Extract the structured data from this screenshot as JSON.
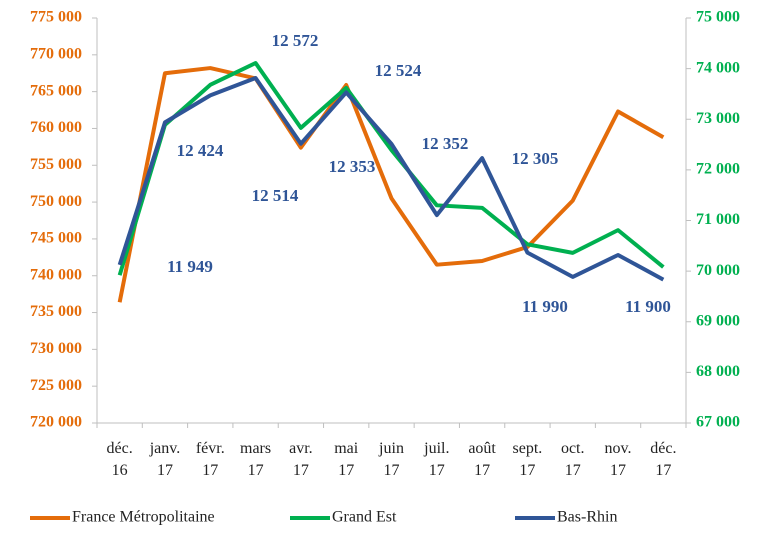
{
  "chart_data": {
    "type": "line",
    "categories": [
      "déc. 16",
      "janv. 17",
      "févr. 17",
      "mars 17",
      "avr. 17",
      "mai 17",
      "juin 17",
      "juil. 17",
      "août 17",
      "sept. 17",
      "oct. 17",
      "nov. 17",
      "déc. 17"
    ],
    "series": [
      {
        "name": "France Métropolitaine",
        "color": "#e46c0a",
        "axis": "y",
        "values": [
          736400,
          767500,
          768200,
          766800,
          757400,
          765900,
          750500,
          741500,
          742000,
          743900,
          750200,
          762300,
          758800
        ]
      },
      {
        "name": "Grand Est",
        "color": "#00b050",
        "axis": "y2",
        "values": [
          69920,
          72890,
          73680,
          74110,
          72830,
          73620,
          72390,
          71300,
          71250,
          70530,
          70360,
          70810,
          70080
        ]
      },
      {
        "name": "Bas-Rhin",
        "color": "#2f5597",
        "axis": "y3",
        "values": [
          11949,
          12424,
          12514,
          12572,
          12353,
          12524,
          12352,
          12115,
          12305,
          11990,
          11909,
          11982,
          11900
        ],
        "value_labels": [
          "11 949",
          "12 424",
          "12 514",
          "12 572",
          "12 353",
          "12 524",
          "12 352",
          null,
          "12 305",
          "11 990",
          null,
          null,
          "11 900"
        ]
      }
    ],
    "ylim": [
      720000,
      775000
    ],
    "yticks": [
      {
        "value": 720000,
        "label": "720 000"
      },
      {
        "value": 725000,
        "label": "725 000"
      },
      {
        "value": 730000,
        "label": "730 000"
      },
      {
        "value": 735000,
        "label": "735 000"
      },
      {
        "value": 740000,
        "label": "740 000"
      },
      {
        "value": 745000,
        "label": "745 000"
      },
      {
        "value": 750000,
        "label": "750 000"
      },
      {
        "value": 755000,
        "label": "755 000"
      },
      {
        "value": 760000,
        "label": "760 000"
      },
      {
        "value": 765000,
        "label": "765 000"
      },
      {
        "value": 770000,
        "label": "770 000"
      },
      {
        "value": 775000,
        "label": "775 000"
      }
    ],
    "y2lim": [
      67000,
      75000
    ],
    "y2ticks": [
      {
        "value": 67000,
        "label": "67 000"
      },
      {
        "value": 68000,
        "label": "68 000"
      },
      {
        "value": 69000,
        "label": "69 000"
      },
      {
        "value": 70000,
        "label": "70 000"
      },
      {
        "value": 71000,
        "label": "71 000"
      },
      {
        "value": 72000,
        "label": "72 000"
      },
      {
        "value": 73000,
        "label": "73 000"
      },
      {
        "value": 74000,
        "label": "74 000"
      },
      {
        "value": 75000,
        "label": "75 000"
      }
    ],
    "y3lim": [
      11422,
      12772
    ],
    "grid": false,
    "legend": "bottom"
  }
}
